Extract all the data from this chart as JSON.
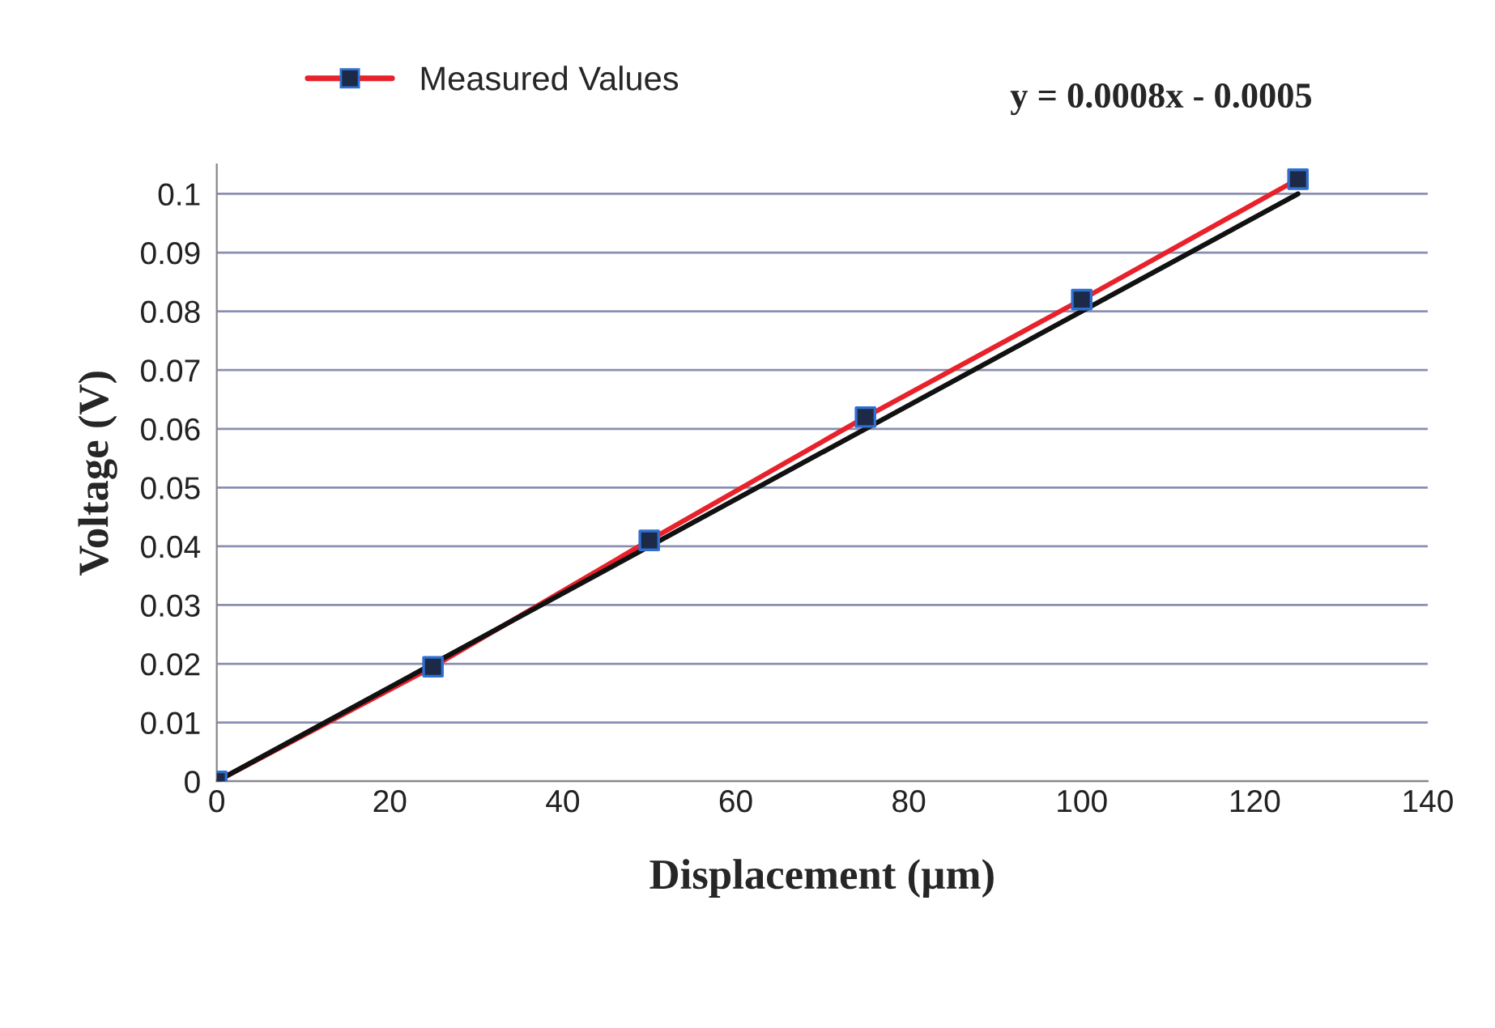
{
  "chart_data": {
    "type": "line",
    "xlabel": "Displacement (µm)",
    "ylabel": "Voltage (V)",
    "x": [
      0,
      25,
      50,
      75,
      100,
      125
    ],
    "series": [
      {
        "name": "Measured Values",
        "color": "#e8212b",
        "colors": [
          "#1c2a48",
          "#1c2a48",
          "#1c2a48",
          "#1c2a48",
          "#1c2a48",
          "#1c2a48"
        ],
        "values": [
          0,
          0.0195,
          0.041,
          0.062,
          0.082,
          0.1025
        ]
      },
      {
        "type": "line",
        "color": "#111111",
        "x": [
          0,
          125
        ],
        "values": [
          0,
          0.1
        ],
        "marker": "none"
      }
    ],
    "annotations": [
      "y = 0.0008x - 0.0005"
    ],
    "xlim": [
      0,
      140
    ],
    "xticks": [
      0,
      20,
      40,
      60,
      80,
      100,
      120,
      140
    ],
    "ylim": [
      0,
      0.105
    ],
    "yticks": [
      0,
      0.01,
      0.02,
      0.03,
      0.04,
      0.05,
      0.06,
      0.07,
      0.08,
      0.09,
      0.1
    ],
    "grid": "y",
    "legend": "top left",
    "marker": "square",
    "line_style": "solid"
  }
}
